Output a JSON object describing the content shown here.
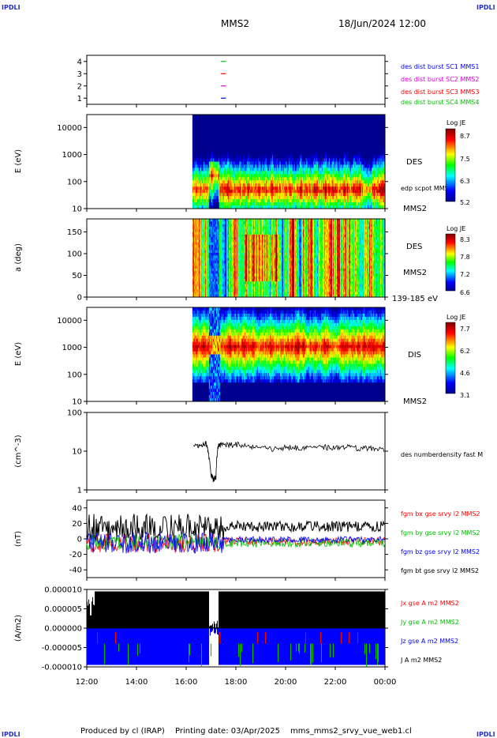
{
  "corner_labels": [
    "IPDLI",
    "IPDLI",
    "IPDLI",
    "IPDLI"
  ],
  "header": {
    "title": "MMS2",
    "date": "18/Jun/2024 12:00"
  },
  "footer": {
    "produced": "Produced by cl (IRAP)",
    "printed": "Printing date: 03/Apr/2025",
    "file": "mms_mms2_srvy_vue_web1.cl"
  },
  "colors": {
    "blue": "#0000ff",
    "magenta": "#e000e0",
    "red": "#ff0000",
    "green": "#00c000",
    "black": "#000000"
  },
  "chart_data": [
    {
      "type": "scatter",
      "name": "burst",
      "ylabel": "",
      "ylim": [
        0.5,
        4.5
      ],
      "yticks": [
        "4",
        "3",
        "2",
        "1"
      ],
      "series": [
        {
          "name": "des dist burst SC1 MMS1",
          "color": "#0000ff",
          "y": 1,
          "x": [
            17.4,
            17.6
          ]
        },
        {
          "name": "des dist burst SC2 MMS2",
          "color": "#e000e0",
          "y": 2,
          "x": [
            17.4,
            17.6
          ]
        },
        {
          "name": "des dist burst SC3 MMS3",
          "color": "#ff0000",
          "y": 3,
          "x": [
            17.4,
            17.6
          ]
        },
        {
          "name": "des dist burst SC4 MMS4",
          "color": "#00c000",
          "y": 4,
          "x": [
            17.4,
            17.6
          ]
        }
      ]
    },
    {
      "type": "heatmap",
      "name": "des-energy",
      "ylabel": "E (eV)",
      "ylim": [
        10,
        30000
      ],
      "yscale": "log",
      "yticks": [
        "10000",
        "1000",
        "100",
        "10"
      ],
      "start_hour": 16.25,
      "colorbar": {
        "title": "Log JE",
        "max": "8.7",
        "mid1": "7.5",
        "mid2": "6.3",
        "min": "5.2"
      },
      "side_labels": [
        "DES",
        "edp scpot MMS2",
        "MMS2"
      ]
    },
    {
      "type": "heatmap",
      "name": "des-pitch",
      "ylabel": "a (deg)",
      "ylim": [
        0,
        180
      ],
      "yticks": [
        "150",
        "100",
        "50",
        "0"
      ],
      "start_hour": 16.25,
      "colorbar": {
        "title": "Log JE",
        "max": "8.3",
        "mid1": "7.8",
        "mid2": "7.2",
        "min": "6.6"
      },
      "side_labels": [
        "DES",
        "MMS2",
        "139-185 eV"
      ]
    },
    {
      "type": "heatmap",
      "name": "dis-energy",
      "ylabel": "E (eV)",
      "ylim": [
        10,
        30000
      ],
      "yscale": "log",
      "yticks": [
        "10000",
        "1000",
        "100",
        "10"
      ],
      "start_hour": 16.25,
      "colorbar": {
        "title": "Log JE",
        "max": "7.7",
        "mid1": "6.2",
        "mid2": "4.6",
        "min": "3.1"
      },
      "side_labels": [
        "DIS",
        "MMS2"
      ]
    },
    {
      "type": "line",
      "name": "density",
      "ylabel": "(cm^-3)",
      "ylim": [
        1,
        100
      ],
      "yscale": "log",
      "yticks": [
        "100",
        "10",
        "1"
      ],
      "series": [
        {
          "name": "des numberdensity fast M",
          "color": "#000000",
          "x": [
            16.3,
            16.6,
            16.8,
            16.9,
            17.0,
            17.1,
            17.2,
            17.3,
            17.5,
            18.0,
            18.5,
            19.0,
            19.5,
            20.0,
            20.5,
            21.0,
            21.5,
            22.0,
            22.5,
            23.0,
            23.5,
            24.0
          ],
          "y": [
            13,
            14,
            16,
            8,
            2.5,
            1.8,
            2.2,
            15,
            14,
            15,
            13,
            12,
            11,
            13,
            12,
            14,
            13,
            12,
            13,
            12,
            12,
            11
          ]
        }
      ]
    },
    {
      "type": "line",
      "name": "fgm",
      "ylabel": "(nT)",
      "ylim": [
        -50,
        50
      ],
      "yticks": [
        "40",
        "20",
        "0",
        "-20",
        "-40"
      ],
      "series": [
        {
          "name": "fgm bx gse srvy l2 MMS2",
          "color": "#ff0000"
        },
        {
          "name": "fgm by gse srvy l2 MMS2",
          "color": "#00c000"
        },
        {
          "name": "fgm bz gse srvy l2 MMS2",
          "color": "#0000ff"
        },
        {
          "name": "fgm bt gse srvy l2 MMS2",
          "color": "#000000"
        }
      ]
    },
    {
      "type": "area",
      "name": "current",
      "ylabel": "(A/m2)",
      "ylim": [
        -1e-05,
        1e-05
      ],
      "yticks": [
        "0.000010",
        "0.000005",
        "0.000000",
        "-0.000005",
        "-0.000010"
      ],
      "series": [
        {
          "name": "Jx gse A m2 MMS2",
          "color": "#ff0000"
        },
        {
          "name": "Jy gse A m2 MMS2",
          "color": "#00c000"
        },
        {
          "name": "Jz gse A m2 MMS2",
          "color": "#0000ff"
        },
        {
          "name": "J A m2 MMS2",
          "color": "#000000"
        }
      ]
    }
  ],
  "time_axis": {
    "xlim": [
      12,
      24
    ],
    "ticks": [
      {
        "x": 12,
        "label": "12:00"
      },
      {
        "x": 14,
        "label": "14:00"
      },
      {
        "x": 16,
        "label": "16:00"
      },
      {
        "x": 18,
        "label": "18:00"
      },
      {
        "x": 20,
        "label": "20:00"
      },
      {
        "x": 22,
        "label": "22:00"
      },
      {
        "x": 24,
        "label": "00:00"
      }
    ]
  }
}
